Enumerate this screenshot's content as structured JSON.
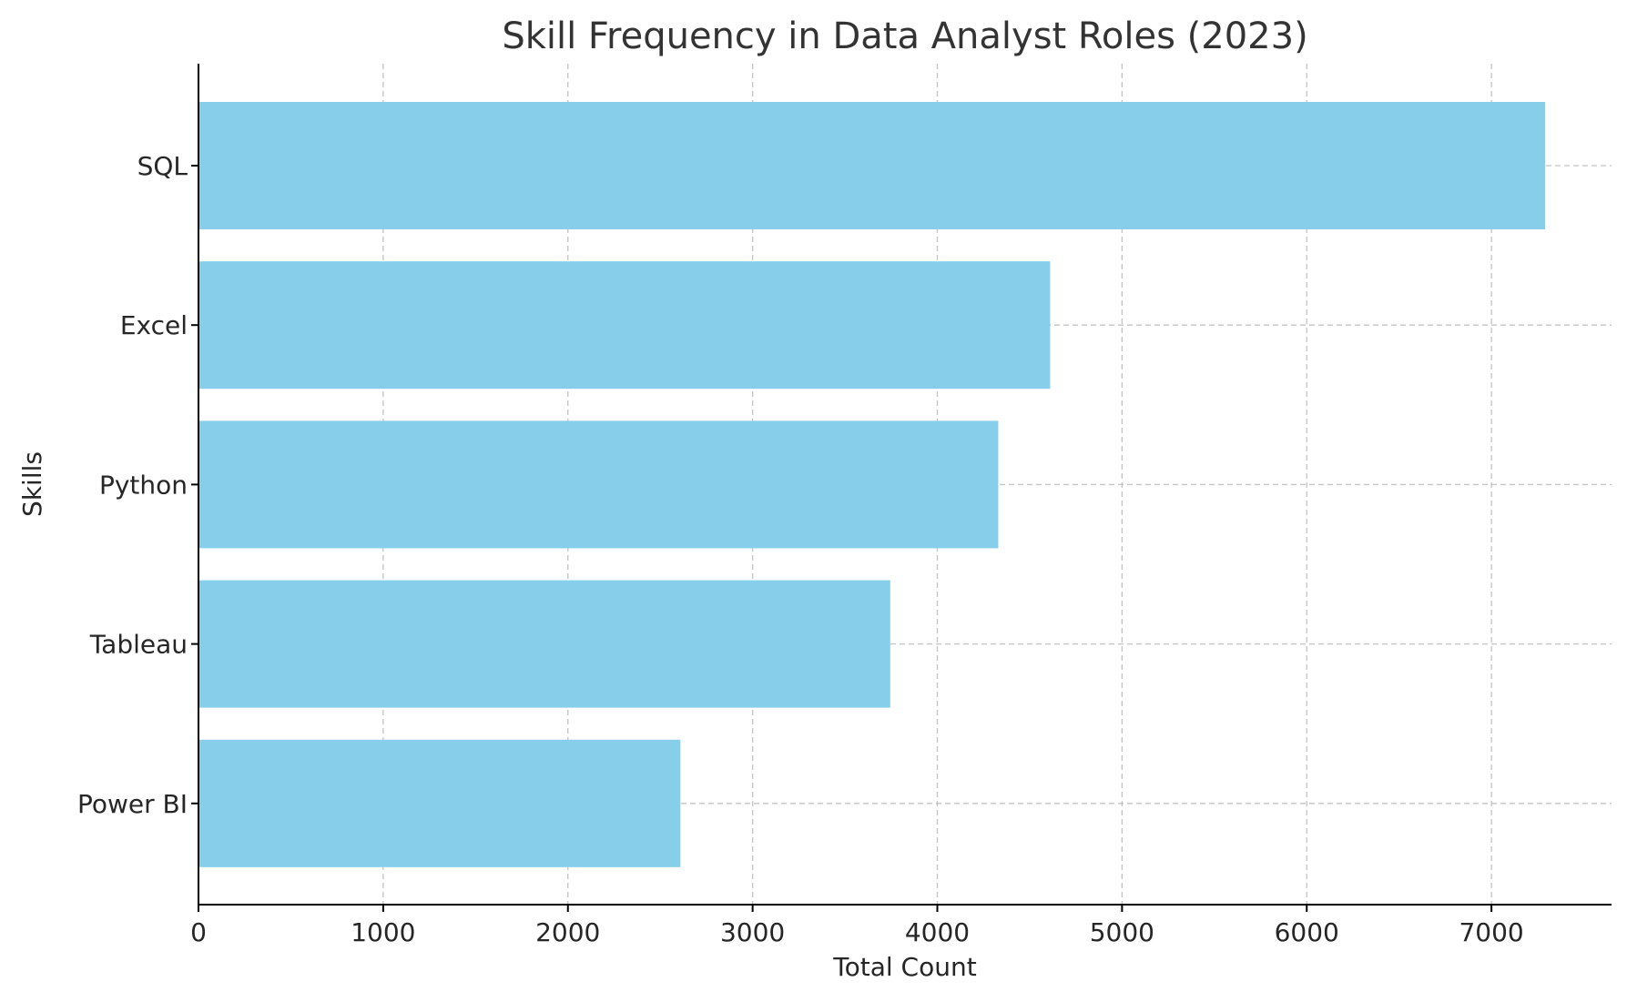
{
  "chart_data": {
    "type": "bar",
    "orientation": "horizontal",
    "title": "Skill Frequency in Data Analyst Roles (2023)",
    "xlabel": "Total Count",
    "ylabel": "Skills",
    "categories": [
      "SQL",
      "Excel",
      "Python",
      "Tableau",
      "Power BI"
    ],
    "values": [
      7291,
      4611,
      4330,
      3745,
      2609
    ],
    "xlim": [
      0,
      7650
    ],
    "xticks": [
      0,
      1000,
      2000,
      3000,
      4000,
      5000,
      6000,
      7000
    ],
    "xtick_labels": [
      "0",
      "1000",
      "2000",
      "3000",
      "4000",
      "5000",
      "6000",
      "7000"
    ],
    "grid": true,
    "bar_color": "#87CEEB"
  }
}
